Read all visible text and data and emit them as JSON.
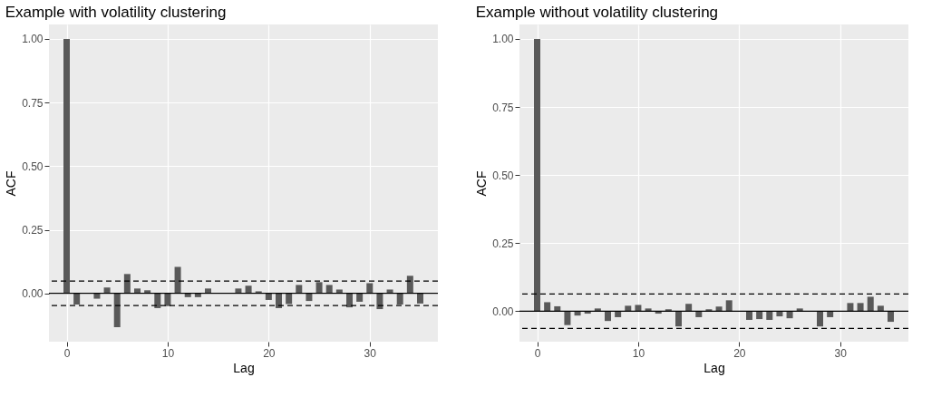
{
  "chart_data": [
    {
      "type": "bar",
      "title": "Example with volatility clustering",
      "xlabel": "Lag",
      "ylabel": "ACF",
      "x": [
        0,
        1,
        2,
        3,
        4,
        5,
        6,
        7,
        8,
        9,
        10,
        11,
        12,
        13,
        14,
        15,
        16,
        17,
        18,
        19,
        20,
        21,
        22,
        23,
        24,
        25,
        26,
        27,
        28,
        29,
        30,
        31,
        32,
        33,
        34,
        35
      ],
      "series": [
        {
          "color": "#595959",
          "values": [
            1.0,
            -0.044,
            0.0,
            -0.021,
            0.023,
            -0.133,
            0.076,
            0.019,
            0.012,
            -0.058,
            -0.05,
            0.104,
            -0.015,
            -0.015,
            0.019,
            null,
            0.0,
            0.019,
            0.03,
            0.008,
            -0.026,
            -0.058,
            -0.042,
            0.033,
            -0.03,
            0.044,
            0.033,
            0.015,
            -0.055,
            -0.033,
            0.04,
            -0.062,
            0.015,
            -0.044,
            0.069,
            -0.04
          ]
        }
      ],
      "xlim": [
        -1.75,
        36.75
      ],
      "xticks": [
        0,
        10,
        20,
        30
      ],
      "ylim": [
        -0.19,
        1.057
      ],
      "yticks": [
        {
          "value": 0,
          "label": "0.00"
        },
        {
          "value": 0.25,
          "label": "0.25"
        },
        {
          "value": 0.5,
          "label": "0.50"
        },
        {
          "value": 0.75,
          "label": "0.75"
        },
        {
          "value": 1,
          "label": "1.00"
        }
      ],
      "ref_lines": [
        {
          "axis": "y",
          "value": 0,
          "color": "#000000",
          "line_style": "solid"
        },
        {
          "axis": "y",
          "value": 0.048,
          "color": "#000000",
          "line_style": "dashed"
        },
        {
          "axis": "y",
          "value": -0.048,
          "color": "#000000",
          "line_style": "dashed"
        }
      ],
      "grid": true,
      "legend": false
    },
    {
      "type": "bar",
      "title": "Example without volatility clustering",
      "xlabel": "Lag",
      "ylabel": "ACF",
      "x": [
        0,
        1,
        2,
        3,
        4,
        5,
        6,
        7,
        8,
        9,
        10,
        11,
        12,
        13,
        14,
        15,
        16,
        17,
        18,
        19,
        20,
        21,
        22,
        23,
        24,
        25,
        26,
        27,
        28,
        29,
        30,
        31,
        32,
        33,
        34,
        35
      ],
      "series": [
        {
          "color": "#595959",
          "values": [
            1.0,
            0.033,
            0.018,
            -0.051,
            -0.016,
            -0.009,
            0.01,
            -0.036,
            -0.022,
            0.02,
            0.023,
            0.01,
            -0.009,
            0.007,
            -0.056,
            0.027,
            -0.022,
            0.007,
            0.017,
            0.04,
            null,
            -0.032,
            -0.029,
            -0.032,
            -0.019,
            -0.026,
            0.01,
            null,
            -0.056,
            -0.022,
            null,
            0.03,
            0.03,
            0.053,
            0.02,
            -0.039
          ]
        }
      ],
      "xlim": [
        -1.75,
        36.75
      ],
      "xticks": [
        0,
        10,
        20,
        30
      ],
      "ylim": [
        -0.112,
        1.053
      ],
      "yticks": [
        {
          "value": 0,
          "label": "0.00"
        },
        {
          "value": 0.25,
          "label": "0.25"
        },
        {
          "value": 0.5,
          "label": "0.50"
        },
        {
          "value": 0.75,
          "label": "0.75"
        },
        {
          "value": 1,
          "label": "1.00"
        }
      ],
      "ref_lines": [
        {
          "axis": "y",
          "value": 0,
          "color": "#000000",
          "line_style": "solid"
        },
        {
          "axis": "y",
          "value": 0.063,
          "color": "#000000",
          "line_style": "dashed"
        },
        {
          "axis": "y",
          "value": -0.063,
          "color": "#000000",
          "line_style": "dashed"
        }
      ],
      "grid": true,
      "legend": false
    }
  ]
}
